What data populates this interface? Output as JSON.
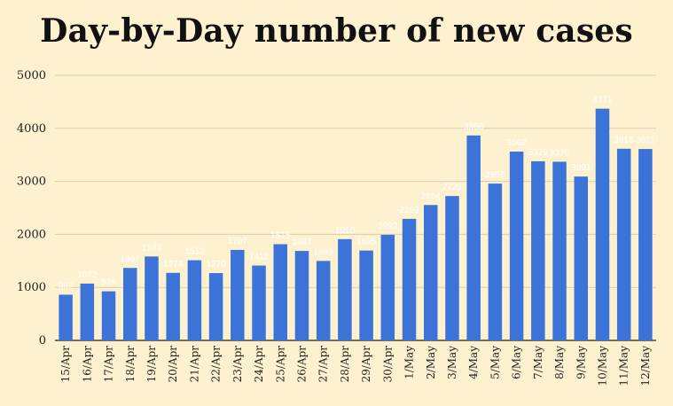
{
  "chart_data": {
    "type": "bar",
    "title": "Day-by-Day number of new cases",
    "xlabel": "",
    "ylabel": "",
    "ylim": [
      0,
      5000
    ],
    "yticks": [
      0,
      1000,
      2000,
      3000,
      4000,
      5000
    ],
    "grid": true,
    "legend": "none",
    "categories": [
      "15/Apr",
      "16/Apr",
      "17/Apr",
      "18/Apr",
      "19/Apr",
      "20/Apr",
      "21/Apr",
      "22/Apr",
      "23/Apr",
      "24/Apr",
      "25/Apr",
      "26/Apr",
      "27/Apr",
      "28/Apr",
      "29/Apr",
      "30/Apr",
      "1/May",
      "2/May",
      "3/May",
      "4/May",
      "5/May",
      "6/May",
      "7/May",
      "8/May",
      "9/May",
      "10/May",
      "11/May",
      "12/May"
    ],
    "values": [
      862,
      1072,
      926,
      1367,
      1583,
      1274,
      1512,
      1270,
      1707,
      1412,
      1815,
      1687,
      1499,
      1910,
      1695,
      1992,
      2293,
      2554,
      2723,
      3866,
      2958,
      3562,
      3379,
      3370,
      3091,
      4371,
      3615,
      3611
    ],
    "colors": {
      "bar": "#3b73d9",
      "background": "#fdf1cf",
      "grid": "#d8cdb0",
      "axis": "#222222",
      "data_label": "#ffffff"
    }
  }
}
